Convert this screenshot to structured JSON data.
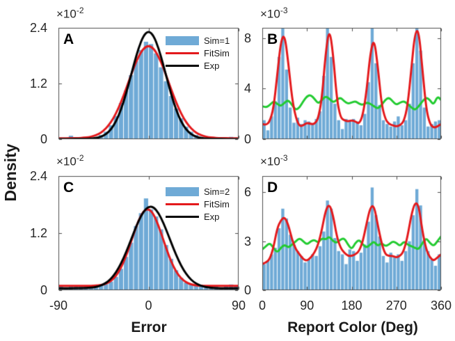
{
  "figure": {
    "ylabel": "Density",
    "colors": {
      "bar": "#6faad6",
      "fit": "#e3191c",
      "exp": "#000000",
      "green": "#22cb30",
      "axis": "#4d4d4d",
      "text": "#262626"
    }
  },
  "panels": [
    {
      "letter": "A",
      "exponent": {
        "mant": "×10",
        "exp": "-2"
      },
      "xlabel": "",
      "xlim": [
        -90,
        90
      ],
      "ylim": [
        0,
        2.4
      ],
      "show_xtick_labels": false,
      "xticks": [
        {
          "v": -90,
          "label": "-90"
        },
        {
          "v": 0,
          "label": "0"
        },
        {
          "v": 90,
          "label": "90"
        }
      ],
      "yticks": [
        {
          "v": 0,
          "label": "0"
        },
        {
          "v": 1.2,
          "label": "1.2"
        },
        {
          "v": 2.4,
          "label": "2.4"
        }
      ],
      "legend": [
        {
          "label": "Sim=1",
          "swatch": "patch",
          "color": "bar"
        },
        {
          "label": "FitSim",
          "swatch": "line",
          "color": "fit"
        },
        {
          "label": "Exp",
          "swatch": "line",
          "color": "exp"
        }
      ],
      "chart_data": {
        "type": "histogram+lines",
        "units": "×10^-2",
        "bars": {
          "name": "Sim=1",
          "bin_start": -87.5,
          "bin_step": 5,
          "bin_width": 5,
          "values": [
            0.01,
            0,
            0.075,
            0.01,
            0.01,
            0.02,
            0.03,
            0.05,
            0.09,
            0.16,
            0.3,
            0.5,
            0.78,
            1.05,
            1.38,
            1.68,
            1.92,
            2.1,
            2.05,
            1.85,
            1.55,
            1.25,
            0.93,
            0.66,
            0.45,
            0.27,
            0.16,
            0.09,
            0.05,
            0.03,
            0.02,
            0.01,
            0,
            0,
            0.05,
            0.01
          ]
        },
        "lines": [
          {
            "name": "FitSim",
            "color": "fit",
            "x_start": -90,
            "x_step": 5,
            "y": [
              0.02,
              0.02,
              0.021,
              0.022,
              0.024,
              0.03,
              0.042,
              0.066,
              0.108,
              0.179,
              0.291,
              0.453,
              0.669,
              0.936,
              1.233,
              1.529,
              1.785,
              1.958,
              2.02,
              1.958,
              1.785,
              1.529,
              1.233,
              0.936,
              0.669,
              0.453,
              0.291,
              0.179,
              0.108,
              0.066,
              0.042,
              0.03,
              0.024,
              0.022,
              0.021,
              0.02,
              0.02
            ]
          },
          {
            "name": "Exp",
            "color": "exp",
            "x_start": -90,
            "x_step": 5,
            "y": [
              0.005,
              0.005,
              0.005,
              0.006,
              0.007,
              0.008,
              0.01,
              0.017,
              0.036,
              0.075,
              0.151,
              0.285,
              0.496,
              0.795,
              1.171,
              1.583,
              1.964,
              2.237,
              2.335,
              2.237,
              1.964,
              1.583,
              1.171,
              0.795,
              0.496,
              0.285,
              0.151,
              0.075,
              0.036,
              0.017,
              0.01,
              0.008,
              0.007,
              0.006,
              0.005,
              0.005,
              0.005
            ]
          }
        ]
      }
    },
    {
      "letter": "B",
      "exponent": {
        "mant": "×10",
        "exp": "-3"
      },
      "xlabel": "",
      "xlim": [
        0,
        360
      ],
      "ylim": [
        0,
        8.8
      ],
      "show_xtick_labels": false,
      "xticks": [
        {
          "v": 0,
          "label": "0"
        },
        {
          "v": 90,
          "label": "90"
        },
        {
          "v": 180,
          "label": "180"
        },
        {
          "v": 270,
          "label": "270"
        },
        {
          "v": 360,
          "label": "360"
        }
      ],
      "yticks": [
        {
          "v": 0,
          "label": "0"
        },
        {
          "v": 4,
          "label": "4"
        },
        {
          "v": 8,
          "label": "8"
        }
      ],
      "legend": null,
      "chart_data": {
        "type": "histogram+lines",
        "units": "×10^-3",
        "bars": {
          "name": "Sim=1",
          "bin_start": 3.75,
          "bin_step": 7.5,
          "bin_width": 7.5,
          "values": [
            1.5,
            0.7,
            1.8,
            3.0,
            6.5,
            9.0,
            5.5,
            2.5,
            1.3,
            1.7,
            1.2,
            1.5,
            1.4,
            1.2,
            1.6,
            2.2,
            5.0,
            9.0,
            6.5,
            2.8,
            1.5,
            0.8,
            1.6,
            1.5,
            1.6,
            1.4,
            1.1,
            2.0,
            4.5,
            8.9,
            6.0,
            2.7,
            1.5,
            1.2,
            1.0,
            1.4,
            1.8,
            1.1,
            1.5,
            2.8,
            6.0,
            8.9,
            7.0,
            2.5,
            1.0,
            1.2,
            1.4,
            1.5
          ]
        },
        "lines": [
          {
            "name": "Exp",
            "color": "green",
            "x_start": 0,
            "x_step": 7.5,
            "y": [
              2.6,
              2.5,
              2.7,
              3.0,
              2.8,
              2.6,
              2.9,
              3.1,
              2.7,
              2.3,
              2.5,
              3.0,
              3.4,
              3.5,
              3.2,
              2.8,
              3.1,
              3.4,
              3.2,
              2.9,
              3.1,
              3.3,
              3.0,
              2.8,
              2.9,
              3.0,
              2.8,
              2.7,
              2.9,
              2.8,
              2.6,
              2.4,
              2.7,
              3.1,
              3.3,
              3.0,
              2.7,
              2.9,
              3.0,
              2.8,
              2.5,
              2.3,
              2.6,
              3.0,
              3.3,
              3.1,
              2.7,
              3.4,
              3.1
            ]
          },
          {
            "name": "FitSim",
            "color": "fit",
            "x_start": 0,
            "x_step": 7.5,
            "y": [
              1.2,
              1.1,
              1.4,
              2.4,
              5.0,
              7.8,
              8.3,
              6.0,
              3.2,
              1.7,
              1.0,
              1.1,
              1.3,
              1.2,
              1.2,
              1.6,
              3.2,
              6.8,
              8.8,
              6.8,
              3.2,
              1.7,
              1.5,
              1.4,
              1.5,
              1.4,
              1.2,
              1.9,
              3.8,
              6.8,
              8.0,
              5.8,
              2.8,
              1.6,
              1.2,
              1.1,
              1.0,
              1.1,
              1.4,
              2.6,
              5.5,
              8.5,
              8.6,
              5.5,
              2.4,
              1.2,
              0.9,
              1.0,
              1.2
            ]
          }
        ]
      }
    },
    {
      "letter": "C",
      "exponent": {
        "mant": "×10",
        "exp": "-2"
      },
      "xlabel": "Error",
      "xlim": [
        -90,
        90
      ],
      "ylim": [
        0,
        2.4
      ],
      "show_xtick_labels": true,
      "xticks": [
        {
          "v": -90,
          "label": "-90"
        },
        {
          "v": 0,
          "label": "0"
        },
        {
          "v": 90,
          "label": "90"
        }
      ],
      "yticks": [
        {
          "v": 0,
          "label": "0"
        },
        {
          "v": 1.2,
          "label": "1.2"
        },
        {
          "v": 2.4,
          "label": "2.4"
        }
      ],
      "legend": [
        {
          "label": "Sim=2",
          "swatch": "patch",
          "color": "bar"
        },
        {
          "label": "FitSim",
          "swatch": "line",
          "color": "fit"
        },
        {
          "label": "Exp",
          "swatch": "line",
          "color": "exp"
        }
      ],
      "chart_data": {
        "type": "histogram+lines",
        "units": "×10^-2",
        "bars": {
          "name": "Sim=2",
          "bin_start": -87.5,
          "bin_step": 5,
          "bin_width": 5,
          "values": [
            0.08,
            0.06,
            0.09,
            0.07,
            0.1,
            0.08,
            0.07,
            0.09,
            0.11,
            0.13,
            0.18,
            0.28,
            0.45,
            0.7,
            1.0,
            1.35,
            1.62,
            1.93,
            1.7,
            1.55,
            1.28,
            0.95,
            0.66,
            0.42,
            0.26,
            0.16,
            0.12,
            0.1,
            0.09,
            0.07,
            0.1,
            0.08,
            0.06,
            0.09,
            0.12,
            0.08
          ]
        },
        "lines": [
          {
            "name": "FitSim",
            "color": "fit",
            "x_start": -90,
            "x_step": 5,
            "y": [
              0.09,
              0.09,
              0.09,
              0.09,
              0.09,
              0.09,
              0.091,
              0.095,
              0.101,
              0.119,
              0.159,
              0.237,
              0.373,
              0.581,
              0.859,
              1.174,
              1.467,
              1.667,
              1.717,
              1.603,
              1.357,
              1.047,
              0.741,
              0.489,
              0.31,
              0.2,
              0.139,
              0.11,
              0.097,
              0.092,
              0.09,
              0.09,
              0.09,
              0.09,
              0.09,
              0.09,
              0.09
            ]
          },
          {
            "name": "Exp",
            "color": "exp",
            "x_start": -90,
            "x_step": 5,
            "y": [
              0.04,
              0.04,
              0.041,
              0.042,
              0.043,
              0.044,
              0.048,
              0.059,
              0.081,
              0.121,
              0.19,
              0.3,
              0.459,
              0.67,
              0.925,
              1.199,
              1.457,
              1.656,
              1.76,
              1.749,
              1.623,
              1.409,
              1.144,
              0.871,
              0.624,
              0.423,
              0.274,
              0.173,
              0.111,
              0.075,
              0.056,
              0.047,
              0.043,
              0.041,
              0.04,
              0.04,
              0.04
            ]
          }
        ]
      }
    },
    {
      "letter": "D",
      "exponent": {
        "mant": "×10",
        "exp": "-3"
      },
      "xlabel": "Report Color (Deg)",
      "xlim": [
        0,
        360
      ],
      "ylim": [
        0,
        7
      ],
      "show_xtick_labels": true,
      "xticks": [
        {
          "v": 0,
          "label": "0"
        },
        {
          "v": 90,
          "label": "90"
        },
        {
          "v": 180,
          "label": "180"
        },
        {
          "v": 270,
          "label": "270"
        },
        {
          "v": 360,
          "label": "360"
        }
      ],
      "yticks": [
        {
          "v": 0,
          "label": "0"
        },
        {
          "v": 3,
          "label": "3"
        },
        {
          "v": 6,
          "label": "6"
        }
      ],
      "legend": null,
      "chart_data": {
        "type": "histogram+lines",
        "units": "×10^-3",
        "bars": {
          "name": "Sim=2",
          "bin_start": 3.75,
          "bin_step": 7.5,
          "bin_width": 7.5,
          "values": [
            1.6,
            1.8,
            2.2,
            2.6,
            3.8,
            5.0,
            4.4,
            3.4,
            2.8,
            2.4,
            2.1,
            1.7,
            1.9,
            2.2,
            2.1,
            2.7,
            3.6,
            5.5,
            5.0,
            3.2,
            2.4,
            2.2,
            1.6,
            2.5,
            2.4,
            1.8,
            2.3,
            2.8,
            4.2,
            6.3,
            4.6,
            3.3,
            2.1,
            1.7,
            2.3,
            2.0,
            2.2,
            1.8,
            2.4,
            3.0,
            4.6,
            6.2,
            5.2,
            3.1,
            2.4,
            1.9,
            1.5,
            2.2
          ]
        },
        "lines": [
          {
            "name": "Exp",
            "color": "green",
            "x_start": 0,
            "x_step": 7.5,
            "y": [
              2.5,
              2.7,
              2.9,
              2.6,
              2.3,
              2.6,
              2.8,
              2.6,
              2.8,
              3.0,
              3.2,
              3.0,
              2.8,
              3.0,
              3.1,
              2.9,
              3.2,
              3.1,
              3.3,
              3.0,
              2.9,
              3.1,
              3.2,
              2.8,
              2.5,
              2.9,
              3.1,
              2.8,
              2.6,
              2.8,
              3.0,
              2.7,
              2.9,
              2.7,
              2.8,
              3.0,
              2.9,
              2.7,
              3.0,
              2.8,
              2.7,
              2.6,
              2.5,
              2.9,
              3.2,
              2.9,
              2.7,
              3.0,
              3.3
            ]
          },
          {
            "name": "FitSim",
            "color": "fit",
            "x_start": 0,
            "x_step": 7.5,
            "y": [
              1.6,
              1.7,
              1.9,
              2.6,
              3.8,
              4.3,
              4.5,
              4.0,
              3.1,
              2.5,
              2.2,
              1.9,
              1.8,
              2.0,
              2.3,
              2.8,
              3.7,
              4.9,
              5.3,
              4.6,
              3.3,
              2.6,
              2.3,
              2.1,
              2.1,
              2.2,
              2.4,
              3.0,
              4.1,
              5.1,
              5.2,
              4.0,
              2.9,
              2.2,
              2.1,
              2.1,
              2.0,
              2.1,
              2.4,
              3.3,
              4.6,
              5.4,
              5.2,
              3.6,
              2.5,
              2.0,
              1.8,
              2.0,
              2.2
            ]
          }
        ]
      }
    }
  ]
}
